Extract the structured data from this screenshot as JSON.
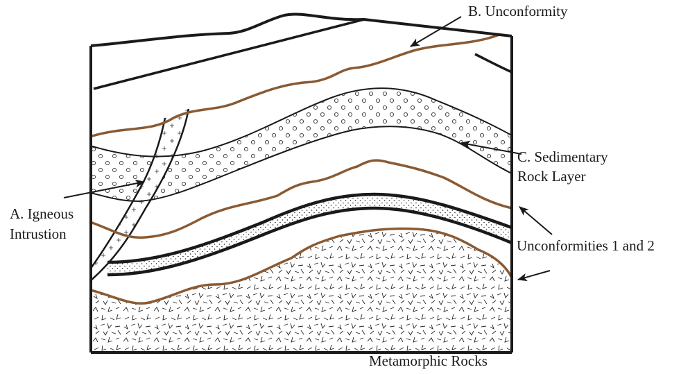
{
  "labels": {
    "a_line1": "A. Igneous",
    "a_line2": "Intrustion",
    "b": "B. Unconformity",
    "c_line1": "C. Sedimentary",
    "c_line2": "Rock Layer",
    "unconformities": "Unconformities 1 and 2",
    "metamorphic": "Metamorphic Rocks"
  },
  "colors": {
    "outline": "#1a1a1a",
    "unconformity": "#8a5a33",
    "background": "#ffffff"
  }
}
